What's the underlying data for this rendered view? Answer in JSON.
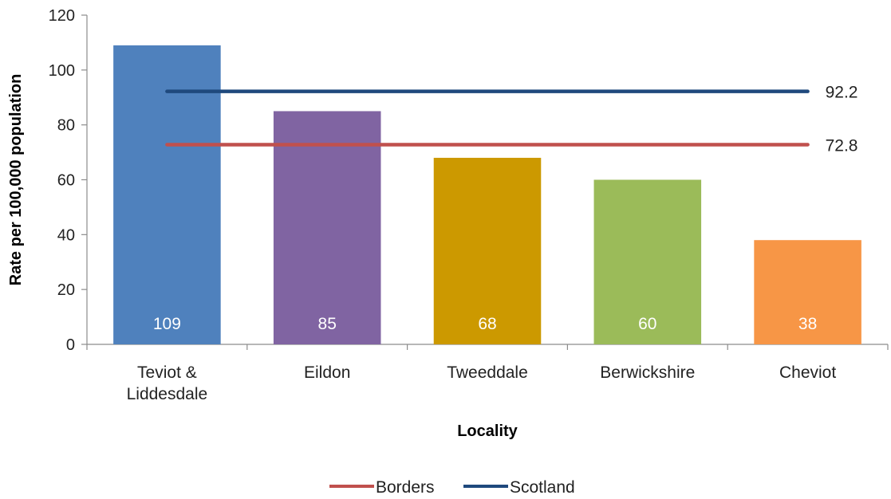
{
  "chart_data": {
    "type": "bar",
    "title": "",
    "xlabel": "Locality",
    "ylabel": "Rate per 100,000 population",
    "ylim": [
      0,
      120
    ],
    "yticks": [
      0,
      20,
      40,
      60,
      80,
      100,
      120
    ],
    "categories": [
      [
        "Teviot &",
        "Liddesdale"
      ],
      [
        "Eildon"
      ],
      [
        "Tweeddale"
      ],
      [
        "Berwickshire"
      ],
      [
        "Cheviot"
      ]
    ],
    "values": [
      109,
      85,
      68,
      60,
      38
    ],
    "data_labels": [
      "109",
      "85",
      "68",
      "60",
      "38"
    ],
    "bar_colors": [
      "#4F81BD",
      "#8064A2",
      "#CC9900",
      "#9BBB59",
      "#F79646"
    ],
    "reference_lines": [
      {
        "name": "Scotland",
        "value": 92.2,
        "label": "92.2",
        "color": "#1F497D"
      },
      {
        "name": "Borders",
        "value": 72.8,
        "label": "72.8",
        "color": "#C0504D"
      }
    ],
    "legend": {
      "position": "bottom",
      "entries": [
        {
          "name": "Borders",
          "color": "#C0504D"
        },
        {
          "name": "Scotland",
          "color": "#1F497D"
        }
      ]
    },
    "grid": false
  }
}
